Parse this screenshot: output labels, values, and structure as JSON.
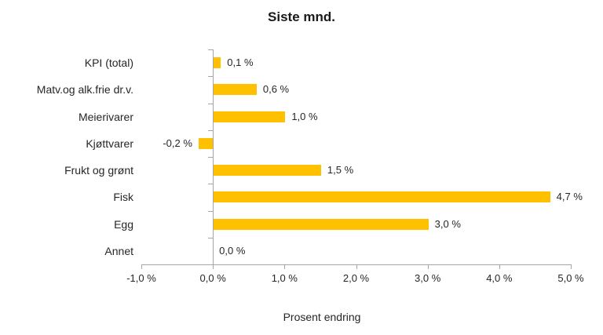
{
  "chart_data": {
    "type": "bar",
    "orientation": "horizontal",
    "title": "Siste mnd.",
    "xlabel": "Prosent endring",
    "ylabel": "",
    "categories": [
      "KPI (total)",
      "Matv.og alk.frie dr.v.",
      "Meierivarer",
      "Kjøttvarer",
      "Frukt og grønt",
      "Fisk",
      "Egg",
      "Annet"
    ],
    "values": [
      0.1,
      0.6,
      1.0,
      -0.2,
      1.5,
      4.7,
      3.0,
      0.0
    ],
    "value_labels": [
      "0,1 %",
      "0,6 %",
      "1,0 %",
      "-0,2 %",
      "1,5 %",
      "4,7 %",
      "3,0 %",
      "0,0 %"
    ],
    "xlim": [
      -1.0,
      5.0
    ],
    "x_ticks": [
      -1.0,
      0.0,
      1.0,
      2.0,
      3.0,
      4.0,
      5.0
    ],
    "x_tick_labels": [
      "-1,0 %",
      "0,0 %",
      "1,0 %",
      "2,0 %",
      "3,0 %",
      "4,0 %",
      "5,0 %"
    ],
    "grid": false,
    "legend": null,
    "colors": {
      "bar": "#FFC000",
      "axis": "#a6a6a6",
      "text": "#262626"
    }
  }
}
